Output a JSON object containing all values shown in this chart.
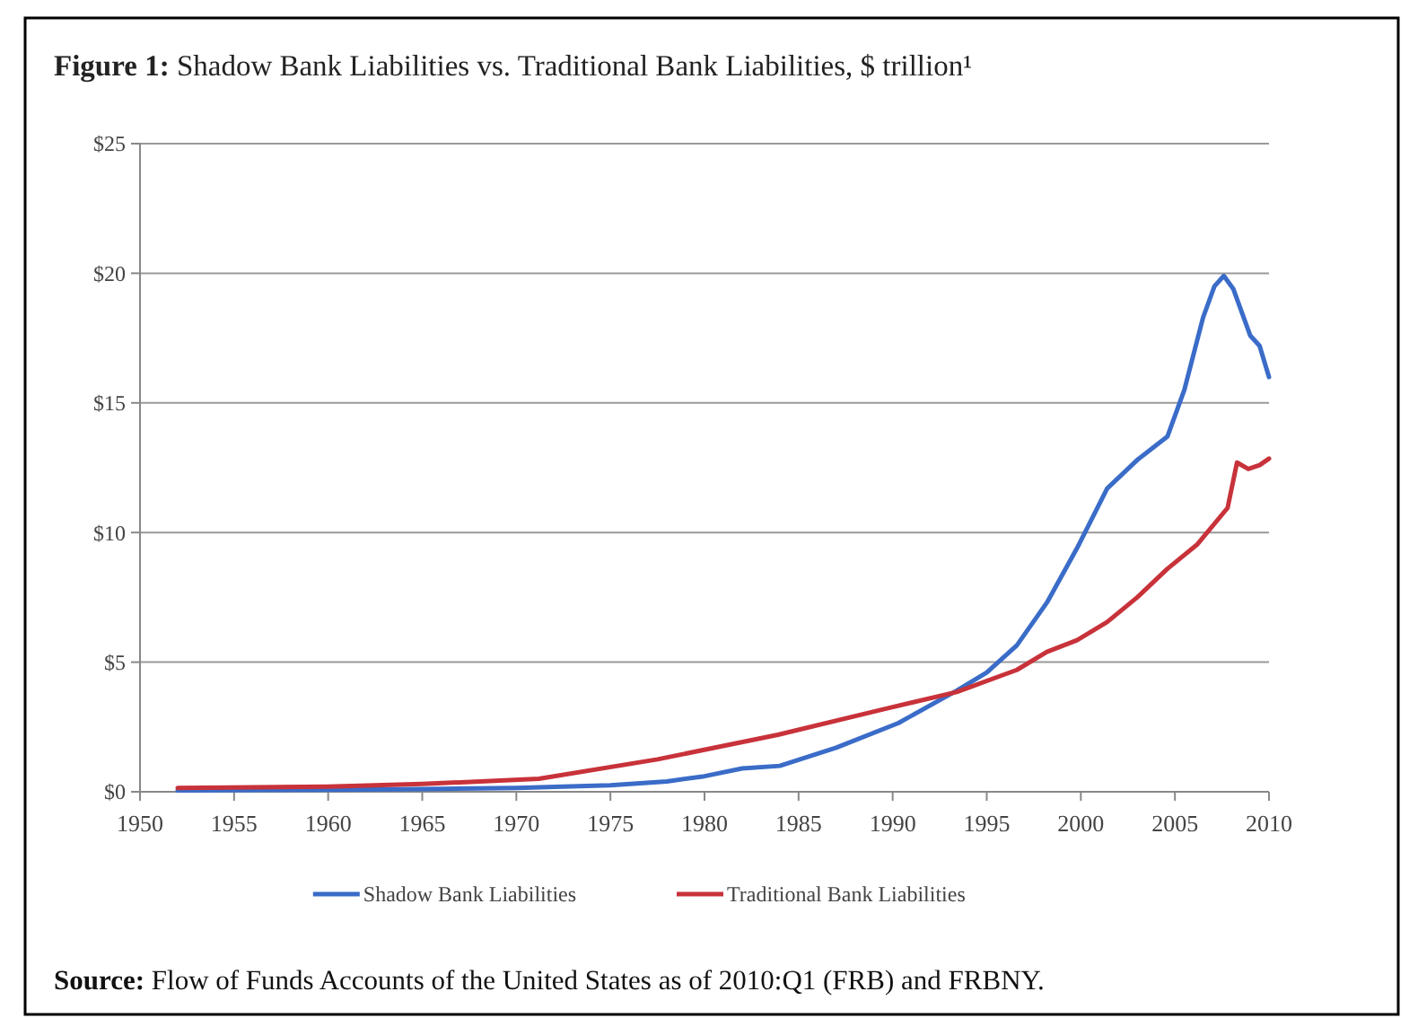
{
  "chart_data": {
    "type": "line",
    "title": "Figure 1: Shadow Bank Liabilities vs. Traditional Bank Liabilities, $ trillion¹",
    "xlim": [
      1950,
      2010
    ],
    "xticks": [
      1950,
      1955,
      1960,
      1965,
      1970,
      1975,
      1980,
      1985,
      1990,
      1995,
      2000,
      2005,
      2010
    ],
    "ylim": [
      0,
      25
    ],
    "yticks": [
      {
        "value": 0,
        "label": "$0"
      },
      {
        "value": 5,
        "label": "$5"
      },
      {
        "value": 10,
        "label": "$10"
      },
      {
        "value": 15,
        "label": "$15"
      },
      {
        "value": 20,
        "label": "$20"
      },
      {
        "value": 25,
        "label": "$25"
      }
    ],
    "grid": "y",
    "legend": "bottom",
    "marker": "none",
    "line_style": "solid",
    "series": [
      {
        "name": "Shadow Bank Liabilities",
        "color": "#3a6cc8",
        "x": [
          1952,
          1960,
          1965,
          1970,
          1975,
          1978,
          1980,
          1982,
          1984,
          1987,
          1990.3,
          1993.4,
          1995,
          1996.6,
          1998.2,
          1999.8,
          2001.4,
          2003,
          2004.6,
          2005.5,
          2006.5,
          2007.1,
          2007.6,
          2008.1,
          2009,
          2009.5,
          2010
        ],
        "values": [
          0.05,
          0.08,
          0.1,
          0.15,
          0.25,
          0.4,
          0.6,
          0.9,
          1.0,
          1.7,
          2.65,
          3.9,
          4.6,
          5.65,
          7.3,
          9.4,
          11.7,
          12.8,
          13.7,
          15.5,
          18.3,
          19.5,
          19.9,
          19.4,
          17.6,
          17.2,
          16.0
        ]
      },
      {
        "name": "Traditional Bank Liabilities",
        "color": "#c8323a",
        "x": [
          1952,
          1960,
          1965,
          1971.2,
          1977.5,
          1983.9,
          1989.6,
          1993.4,
          1996.6,
          1998.2,
          1999.8,
          2001.4,
          2003,
          2004.6,
          2006.2,
          2007.8,
          2008.3,
          2008.9,
          2009.5,
          2010
        ],
        "values": [
          0.15,
          0.2,
          0.3,
          0.5,
          1.25,
          2.2,
          3.2,
          3.85,
          4.7,
          5.4,
          5.85,
          6.55,
          7.5,
          8.6,
          9.55,
          10.95,
          12.7,
          12.45,
          12.6,
          12.85
        ]
      }
    ],
    "annotations": [
      "Source: Flow of Funds Accounts of the United States as of 2010:Q1 (FRB) and FRBNY."
    ]
  }
}
